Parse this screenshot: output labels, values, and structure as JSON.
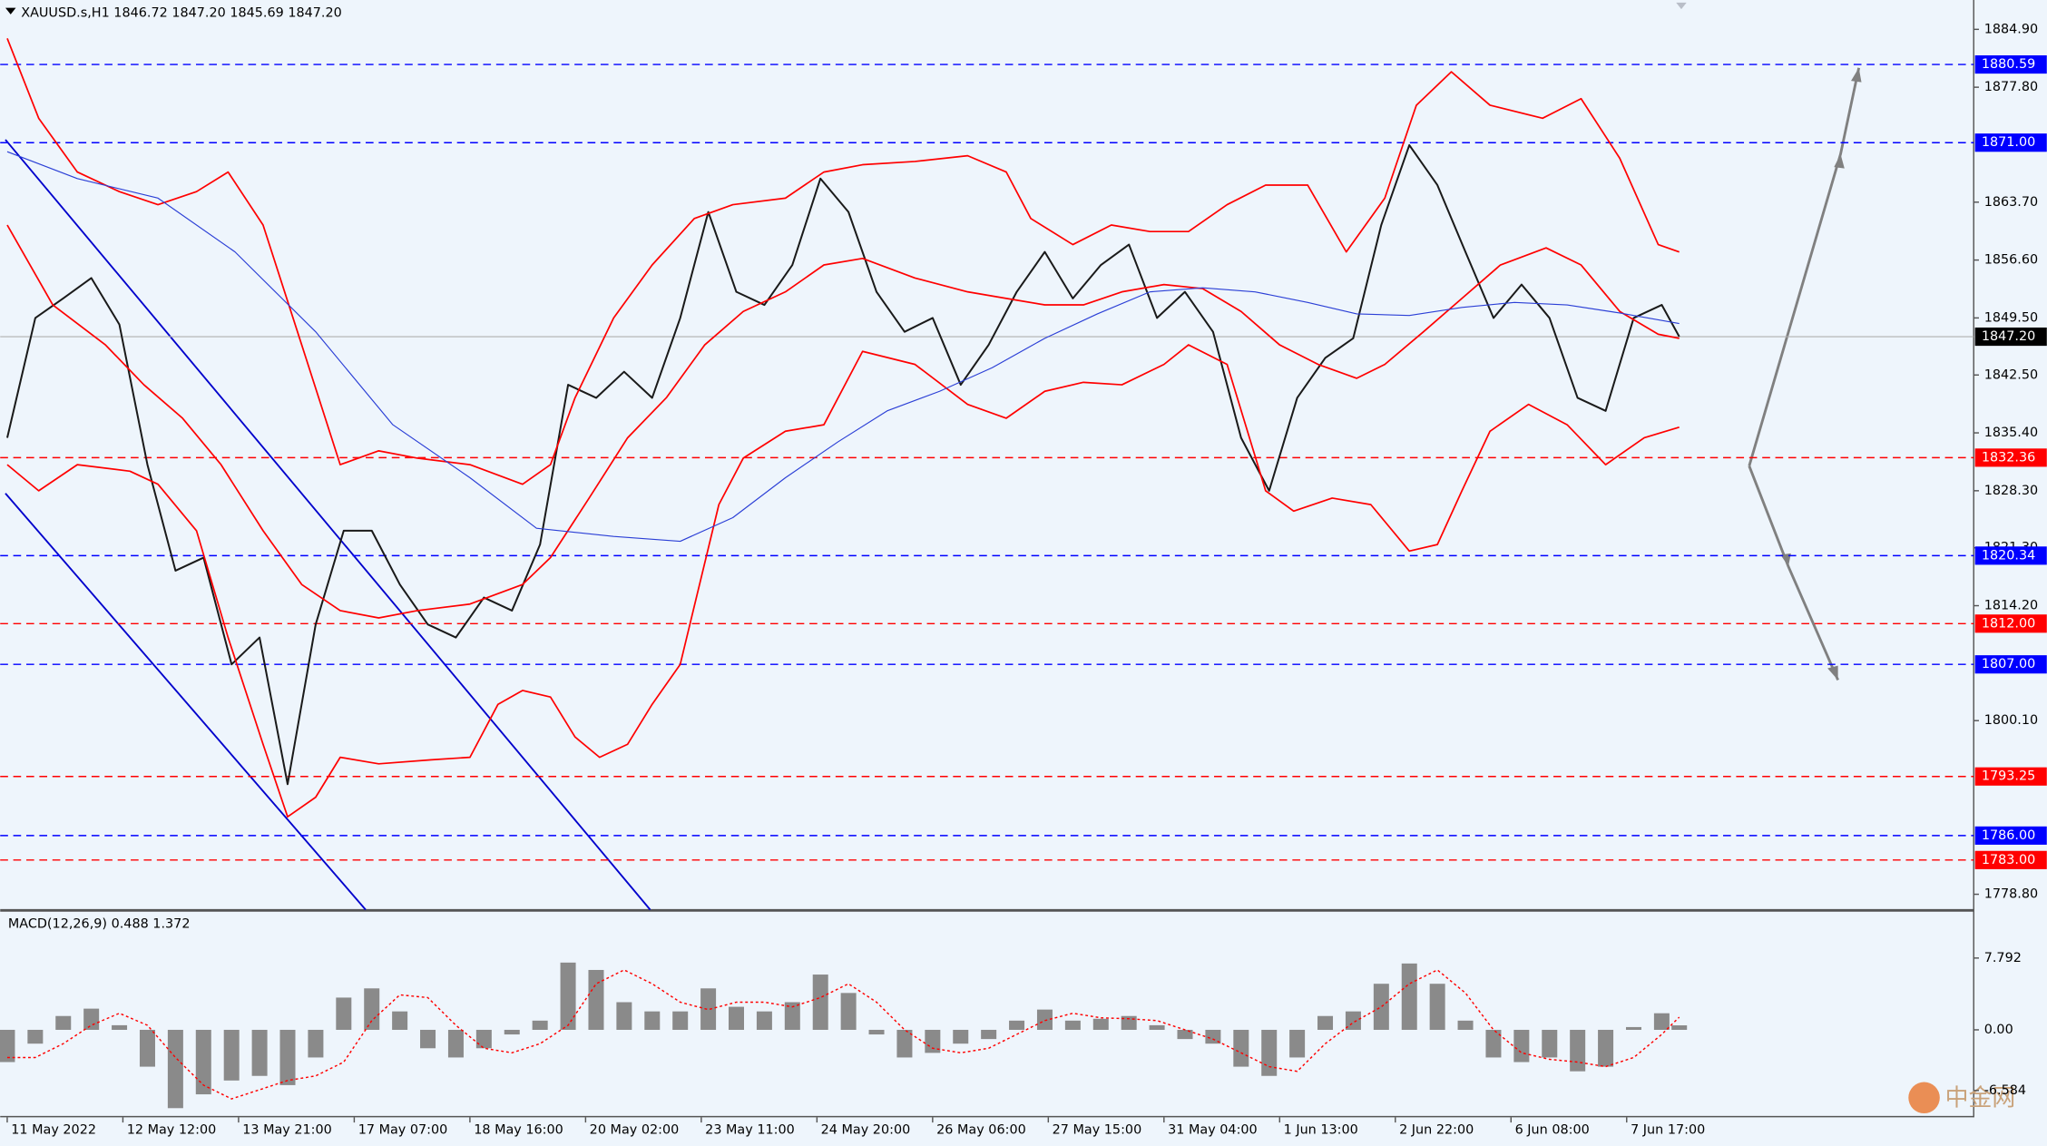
{
  "chart_data": [
    {
      "type": "line",
      "title": "XAUUSD.s,H1  1846.72 1847.20 1845.69 1847.20",
      "xlim": [
        -2,
        561
      ],
      "xticks": [
        {
          "value": 0,
          "label": "11 May 2022"
        },
        {
          "value": 33,
          "label": "12 May 12:00"
        },
        {
          "value": 66,
          "label": "13 May 21:00"
        },
        {
          "value": 99,
          "label": "17 May 07:00"
        },
        {
          "value": 132,
          "label": "18 May 16:00"
        },
        {
          "value": 165,
          "label": "20 May 02:00"
        },
        {
          "value": 198,
          "label": "23 May 11:00"
        },
        {
          "value": 231,
          "label": "24 May 20:00"
        },
        {
          "value": 264,
          "label": "26 May 06:00"
        },
        {
          "value": 297,
          "label": "27 May 15:00"
        },
        {
          "value": 330,
          "label": "31 May 04:00"
        },
        {
          "value": 363,
          "label": "1 Jun 13:00"
        },
        {
          "value": 396,
          "label": "2 Jun 22:00"
        },
        {
          "value": 429,
          "label": "6 Jun 08:00"
        },
        {
          "value": 462,
          "label": "7 Jun 17:00"
        }
      ],
      "ylim": [
        1776.9,
        1888.5
      ],
      "yticks": [
        {
          "value": 1884.9,
          "label": "1884.90"
        },
        {
          "value": 1877.8,
          "label": "1877.80"
        },
        {
          "value": 1863.7,
          "label": "1863.70"
        },
        {
          "value": 1856.6,
          "label": "1856.60"
        },
        {
          "value": 1849.5,
          "label": "1849.50"
        },
        {
          "value": 1842.5,
          "label": "1842.50"
        },
        {
          "value": 1835.4,
          "label": "1835.40"
        },
        {
          "value": 1828.3,
          "label": "1828.30"
        },
        {
          "value": 1821.3,
          "label": "1821.30"
        },
        {
          "value": 1814.2,
          "label": "1814.20"
        },
        {
          "value": 1800.1,
          "label": "1800.10"
        },
        {
          "value": 1778.8,
          "label": "1778.80"
        }
      ],
      "grid": false,
      "series": [
        {
          "color": "#1a1a1a",
          "width": 1.4,
          "x": [
            0,
            8,
            16,
            24,
            32,
            40,
            48,
            56,
            64,
            72,
            80,
            88,
            96,
            104,
            112,
            120,
            128,
            136,
            144,
            152,
            160,
            168,
            176,
            184,
            192,
            200,
            208,
            216,
            224,
            232,
            240,
            248,
            256,
            264,
            272,
            280,
            288,
            296,
            304,
            312,
            320,
            328,
            336,
            344,
            352,
            360,
            368,
            376,
            384,
            392,
            400,
            408,
            416,
            424,
            432,
            440,
            448,
            456,
            464,
            472,
            477
          ],
          "values": [
            1834.8,
            1849.5,
            1851.9,
            1854.4,
            1848.7,
            1831.5,
            1818.5,
            1820.1,
            1807.0,
            1810.3,
            1792.3,
            1811.9,
            1823.4,
            1823.4,
            1816.8,
            1811.9,
            1810.3,
            1815.2,
            1813.6,
            1821.7,
            1841.3,
            1839.7,
            1842.9,
            1839.7,
            1849.5,
            1862.5,
            1852.7,
            1851.1,
            1856.0,
            1866.6,
            1862.5,
            1852.7,
            1847.8,
            1849.5,
            1841.3,
            1846.2,
            1852.7,
            1857.6,
            1851.9,
            1856.0,
            1858.5,
            1849.5,
            1852.7,
            1847.8,
            1834.8,
            1828.3,
            1839.7,
            1844.6,
            1847.0,
            1860.9,
            1870.7,
            1865.8,
            1857.6,
            1849.5,
            1853.6,
            1849.5,
            1839.7,
            1838.1,
            1849.5,
            1851.1,
            1847.2
          ]
        },
        {
          "color": "#ff0000",
          "width": 1.2,
          "x": [
            0,
            9,
            20,
            32,
            43,
            54,
            63,
            73,
            84,
            95,
            106,
            117,
            132,
            147,
            155,
            162,
            173,
            184,
            196,
            207,
            222,
            233,
            244,
            259,
            274,
            285,
            292,
            304,
            315,
            326,
            337,
            348,
            359,
            371,
            382,
            393,
            402,
            412,
            423,
            438,
            449,
            460,
            471,
            477
          ],
          "values": [
            1883.8,
            1874.0,
            1867.4,
            1865.0,
            1863.4,
            1865.0,
            1867.4,
            1860.9,
            1846.2,
            1831.5,
            1833.2,
            1832.3,
            1831.5,
            1829.1,
            1831.5,
            1839.7,
            1849.5,
            1856.0,
            1861.7,
            1863.4,
            1864.2,
            1867.4,
            1868.3,
            1868.7,
            1869.4,
            1867.4,
            1861.7,
            1858.5,
            1860.9,
            1860.1,
            1860.1,
            1863.4,
            1865.8,
            1865.8,
            1857.6,
            1864.2,
            1875.6,
            1879.7,
            1875.6,
            1874.0,
            1876.4,
            1869.1,
            1858.5,
            1857.6
          ]
        },
        {
          "color": "#ff0000",
          "width": 1.2,
          "x": [
            0,
            13,
            28,
            39,
            50,
            61,
            73,
            84,
            95,
            106,
            117,
            132,
            147,
            155,
            166,
            177,
            188,
            199,
            210,
            222,
            233,
            244,
            259,
            274,
            285,
            296,
            307,
            318,
            330,
            341,
            352,
            363,
            374,
            385,
            393,
            404,
            415,
            426,
            439,
            449,
            460,
            471,
            477
          ],
          "values": [
            1860.9,
            1851.1,
            1846.2,
            1841.3,
            1837.2,
            1831.5,
            1823.4,
            1816.8,
            1813.6,
            1812.7,
            1813.6,
            1814.4,
            1816.8,
            1820.1,
            1827.4,
            1834.8,
            1839.7,
            1846.2,
            1850.3,
            1852.7,
            1856.0,
            1856.8,
            1854.4,
            1852.7,
            1851.9,
            1851.1,
            1851.1,
            1852.7,
            1853.6,
            1853.1,
            1850.3,
            1846.2,
            1843.8,
            1842.1,
            1843.8,
            1847.8,
            1851.9,
            1856.0,
            1858.1,
            1856.0,
            1850.3,
            1847.5,
            1847.0
          ]
        },
        {
          "color": "#ff0000",
          "width": 1.2,
          "x": [
            0,
            9,
            20,
            35,
            43,
            54,
            63,
            73,
            80,
            88,
            95,
            106,
            121,
            132,
            140,
            147,
            155,
            162,
            169,
            177,
            184,
            192,
            203,
            210,
            222,
            233,
            244,
            259,
            274,
            285,
            296,
            307,
            318,
            330,
            337,
            348,
            359,
            367,
            378,
            389,
            400,
            408,
            415,
            423,
            434,
            445,
            456,
            467,
            477
          ],
          "values": [
            1831.5,
            1828.3,
            1831.5,
            1830.7,
            1829.1,
            1823.4,
            1810.3,
            1797.2,
            1788.3,
            1790.7,
            1795.6,
            1794.8,
            1795.3,
            1795.6,
            1802.1,
            1803.8,
            1803.0,
            1798.1,
            1795.6,
            1797.2,
            1802.1,
            1807.0,
            1826.6,
            1832.3,
            1835.6,
            1836.4,
            1845.4,
            1843.8,
            1838.9,
            1837.2,
            1840.5,
            1841.6,
            1841.3,
            1843.8,
            1846.2,
            1843.8,
            1828.3,
            1825.8,
            1827.4,
            1826.6,
            1820.9,
            1821.7,
            1828.3,
            1835.6,
            1838.9,
            1836.4,
            1831.5,
            1834.8,
            1836.1
          ]
        },
        {
          "color": "#2b3fd6",
          "width": 0.8,
          "x": [
            0,
            20,
            43,
            65,
            88,
            110,
            132,
            151,
            173,
            192,
            207,
            222,
            237,
            251,
            266,
            281,
            296,
            311,
            326,
            341,
            356,
            371,
            385,
            400,
            415,
            430,
            445,
            460,
            477
          ],
          "values": [
            1869.9,
            1866.6,
            1864.2,
            1857.6,
            1847.8,
            1836.4,
            1829.9,
            1823.7,
            1822.7,
            1822.1,
            1825.0,
            1829.9,
            1834.3,
            1838.1,
            1840.5,
            1843.4,
            1847.0,
            1850.0,
            1852.7,
            1853.2,
            1852.7,
            1851.4,
            1850.0,
            1849.8,
            1850.8,
            1851.4,
            1851.1,
            1850.1,
            1848.8
          ]
        }
      ],
      "levels": [
        {
          "value": 1880.59,
          "label": "1880.59",
          "color": "#0000ff"
        },
        {
          "value": 1871,
          "label": "1871.00",
          "color": "#0000ff"
        },
        {
          "value": 1832.36,
          "label": "1832.36",
          "color": "#ff0000"
        },
        {
          "value": 1820.34,
          "label": "1820.34",
          "color": "#0000ff"
        },
        {
          "value": 1812,
          "label": "1812.00",
          "color": "#ff0000"
        },
        {
          "value": 1807,
          "label": "1807.00",
          "color": "#0000ff"
        },
        {
          "value": 1793.25,
          "label": "1793.25",
          "color": "#ff0000"
        },
        {
          "value": 1786,
          "label": "1786.00",
          "color": "#0000ff"
        },
        {
          "value": 1783,
          "label": "1783.00",
          "color": "#ff0000"
        }
      ],
      "current_price": {
        "value": 1847.2,
        "label": "1847.20"
      }
    },
    {
      "type": "bar",
      "title": "MACD(12,26,9) 0.488 1.372",
      "xlim": [
        -2,
        561
      ],
      "ylim": [
        -9.35,
        12.75
      ],
      "yticks": [
        7.792,
        {
          "value": 0,
          "label": "0.00"
        },
        -6.584
      ],
      "x": [
        0,
        8,
        16,
        24,
        32,
        40,
        48,
        56,
        64,
        72,
        80,
        88,
        96,
        104,
        112,
        120,
        128,
        136,
        144,
        152,
        160,
        168,
        176,
        184,
        192,
        200,
        208,
        216,
        224,
        232,
        240,
        248,
        256,
        264,
        272,
        280,
        288,
        296,
        304,
        312,
        320,
        328,
        336,
        344,
        352,
        360,
        368,
        376,
        384,
        392,
        400,
        408,
        416,
        424,
        432,
        440,
        448,
        456,
        464,
        472,
        477
      ],
      "series": [
        {
          "type": "bar",
          "color": "#8a8a8a",
          "values": [
            -3.5,
            -1.5,
            1.5,
            2.3,
            0.5,
            -4,
            -8.5,
            -7,
            -5.5,
            -5,
            -6,
            -3,
            3.5,
            4.5,
            2,
            -2,
            -3,
            -2,
            -0.5,
            1,
            7.3,
            6.5,
            3,
            2,
            2,
            4.5,
            2.5,
            2,
            3,
            6,
            4,
            -0.5,
            -3,
            -2.5,
            -1.5,
            -1,
            1,
            2.2,
            1,
            1.2,
            1.5,
            0.5,
            -1,
            -1.5,
            -4,
            -5,
            -3,
            1.5,
            2,
            5,
            7.2,
            5,
            1,
            -3,
            -3.5,
            -3,
            -4.5,
            -4,
            0.3,
            1.8,
            0.488
          ]
        },
        {
          "type": "line",
          "color": "#ff0000",
          "values": [
            -3,
            -3,
            -1.5,
            0.5,
            1.8,
            0.5,
            -3,
            -6,
            -7.5,
            -6.5,
            -5.5,
            -5,
            -3.5,
            1,
            3.8,
            3.5,
            0.5,
            -2,
            -2.5,
            -1.5,
            0.5,
            5,
            6.5,
            5,
            3,
            2.2,
            3,
            3,
            2.5,
            3.5,
            5,
            3,
            0,
            -2,
            -2.5,
            -2,
            -0.5,
            1,
            1.8,
            1.3,
            1.2,
            1,
            0,
            -1,
            -2.5,
            -4,
            -4.5,
            -1.5,
            0.8,
            2.5,
            5,
            6.5,
            4,
            0,
            -2.5,
            -3.2,
            -3.5,
            -4,
            -3,
            -0.5,
            1.372
          ]
        }
      ]
    }
  ],
  "watermark": "中金网"
}
